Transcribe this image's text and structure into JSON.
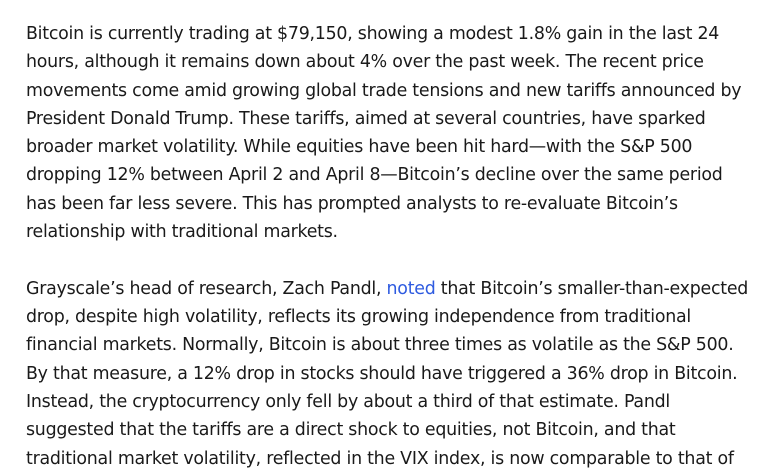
{
  "article": {
    "paragraph1": "Bitcoin is currently trading at $79,150, showing a modest 1.8% gain in the last 24 hours, although it remains down about 4% over the past week. The recent price movements come amid growing global trade tensions and new tariffs announced by President Donald Trump. These tariffs, aimed at several countries, have sparked broader market volatility. While equities have been hit hard—with the S&P 500 dropping 12% between April 2 and April 8—Bitcoin’s decline over the same period has been far less severe. This has prompted analysts to re-evaluate Bitcoin’s relationship with traditional markets.",
    "paragraph2": {
      "before_link": "Grayscale’s head of research, Zach Pandl, ",
      "link_text": "noted",
      "after_link": " that Bitcoin’s smaller-than-expected drop, despite high volatility, reflects its growing independence from traditional financial markets. Normally, Bitcoin is about three times as volatile as the S&P 500. By that measure, a 12% drop in stocks should have triggered a 36% drop in Bitcoin. Instead, the cryptocurrency only fell by about a third of that estimate. Pandl suggested that the tariffs are a direct shock to equities, not Bitcoin, and that traditional market volatility, reflected in the VIX index, is now comparable to that of"
    }
  },
  "colors": {
    "text": "#1a1a1a",
    "link": "#2e5be0",
    "background": "#ffffff"
  }
}
